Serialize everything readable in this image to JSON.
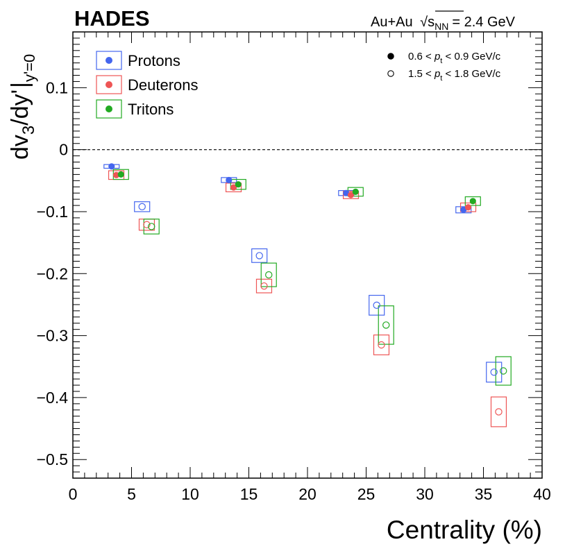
{
  "chart_data": {
    "type": "scatter",
    "experiment": "HADES",
    "system": {
      "prefix": "Au+Au",
      "sqrt_symbol": "√",
      "var": "s",
      "var_sub": "NN",
      "value": "= 2.4 GeV"
    },
    "ylabel": {
      "main": "dv",
      "sub": "3",
      "rest": "/dy'",
      "eval_sub": "y'=0"
    },
    "xlabel": "Centrality (%)",
    "xlim": [
      0,
      40
    ],
    "ylim": [
      -0.53,
      0.19
    ],
    "x_ticks": [
      0,
      5,
      10,
      15,
      20,
      25,
      30,
      35,
      40
    ],
    "y_ticks": [
      0.1,
      0,
      -0.1,
      -0.2,
      -0.3,
      -0.4,
      -0.5
    ],
    "x_tick_labels": [
      "0",
      "5",
      "10",
      "15",
      "20",
      "25",
      "30",
      "35",
      "40"
    ],
    "y_tick_labels": [
      "0.1",
      "0",
      "−0.1",
      "−0.2",
      "−0.3",
      "−0.4",
      "−0.5"
    ],
    "zero_line": true,
    "legend_species": [
      {
        "name": "Protons",
        "color": "#4466ee"
      },
      {
        "name": "Deuterons",
        "color": "#ee5555"
      },
      {
        "name": "Tritons",
        "color": "#22aa22"
      }
    ],
    "legend_pt": [
      {
        "marker": "filled",
        "lo": "0.6",
        "hi": "0.9 GeV/c"
      },
      {
        "marker": "open",
        "lo": "1.5",
        "hi": "1.8 GeV/c"
      }
    ],
    "pt_symbol": "p",
    "pt_sub": "t",
    "series": [
      {
        "name": "Protons",
        "pt": "0.6-0.9",
        "marker": "filled",
        "color": "#4466ee",
        "x": [
          3.3,
          13.3,
          23.3,
          33.3
        ],
        "y": [
          -0.027,
          -0.049,
          -0.07,
          -0.097
        ],
        "sys_y": [
          0.003,
          0.004,
          0.004,
          0.005
        ],
        "sys_x": [
          0.65,
          0.65,
          0.65,
          0.65
        ]
      },
      {
        "name": "Deuterons",
        "pt": "0.6-0.9",
        "marker": "filled",
        "color": "#ee5555",
        "x": [
          3.7,
          13.7,
          23.7,
          33.7
        ],
        "y": [
          -0.041,
          -0.061,
          -0.073,
          -0.093
        ],
        "sys_y": [
          0.007,
          0.007,
          0.006,
          0.007
        ],
        "sys_x": [
          0.65,
          0.65,
          0.65,
          0.65
        ]
      },
      {
        "name": "Tritons",
        "pt": "0.6-0.9",
        "marker": "filled",
        "color": "#22aa22",
        "x": [
          4.1,
          14.1,
          24.1,
          34.1
        ],
        "y": [
          -0.04,
          -0.056,
          -0.068,
          -0.083
        ],
        "sys_y": [
          0.008,
          0.008,
          0.007,
          0.007
        ],
        "sys_x": [
          0.65,
          0.65,
          0.65,
          0.65
        ]
      },
      {
        "name": "Protons",
        "pt": "1.5-1.8",
        "marker": "open",
        "color": "#4466ee",
        "x": [
          5.9,
          15.9,
          25.9,
          35.9
        ],
        "y": [
          -0.092,
          -0.171,
          -0.251,
          -0.359
        ],
        "sys_y": [
          0.008,
          0.011,
          0.016,
          0.016
        ],
        "sys_x": [
          0.65,
          0.65,
          0.65,
          0.65
        ]
      },
      {
        "name": "Deuterons",
        "pt": "1.5-1.8",
        "marker": "open",
        "color": "#ee5555",
        "x": [
          6.3,
          16.3,
          26.3,
          36.3
        ],
        "y": [
          -0.121,
          -0.22,
          -0.315,
          -0.423
        ],
        "sys_y": [
          0.009,
          0.011,
          0.016,
          0.024
        ],
        "sys_x": [
          0.65,
          0.65,
          0.65,
          0.65
        ]
      },
      {
        "name": "Tritons",
        "pt": "1.5-1.8",
        "marker": "open",
        "color": "#22aa22",
        "x": [
          6.7,
          16.7,
          26.7,
          36.7
        ],
        "y": [
          -0.124,
          -0.202,
          -0.283,
          -0.357
        ],
        "sys_y": [
          0.012,
          0.019,
          0.031,
          0.023
        ],
        "sys_x": [
          0.65,
          0.65,
          0.65,
          0.65
        ]
      }
    ]
  }
}
